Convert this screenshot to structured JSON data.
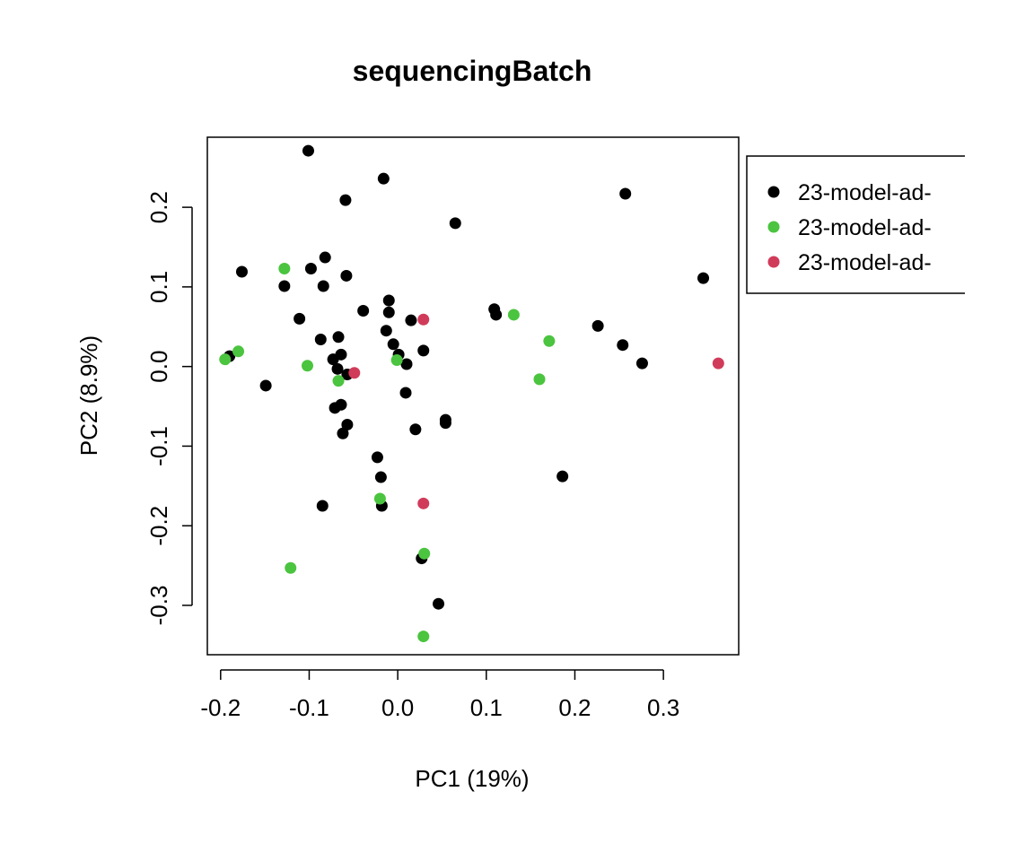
{
  "chart_data": {
    "type": "scatter",
    "title": "sequencingBatch",
    "xlabel": "PC1 (19%)",
    "ylabel": "PC2 (8.9%)",
    "xlim": [
      -0.215,
      0.385
    ],
    "ylim": [
      -0.362,
      0.288
    ],
    "x_ticks": [
      -0.2,
      -0.1,
      0.0,
      0.1,
      0.2,
      0.3
    ],
    "x_tick_labels": [
      "-0.2",
      "-0.1",
      "0.0",
      "0.1",
      "0.2",
      "0.3"
    ],
    "y_ticks": [
      -0.3,
      -0.2,
      -0.1,
      0.0,
      0.1,
      0.2
    ],
    "y_tick_labels": [
      "-0.3",
      "-0.2",
      "-0.1",
      "0.0",
      "0.1",
      "0.2"
    ],
    "grid": false,
    "legend_position": "right",
    "series": [
      {
        "name": "23-model-ad-",
        "color": "#000000",
        "points": [
          [
            -0.101,
            0.271
          ],
          [
            -0.016,
            0.236
          ],
          [
            -0.059,
            0.209
          ],
          [
            0.065,
            0.18
          ],
          [
            0.257,
            0.217
          ],
          [
            -0.176,
            0.119
          ],
          [
            -0.098,
            0.123
          ],
          [
            -0.082,
            0.137
          ],
          [
            -0.084,
            0.101
          ],
          [
            -0.128,
            0.101
          ],
          [
            -0.058,
            0.114
          ],
          [
            0.345,
            0.111
          ],
          [
            -0.01,
            0.083
          ],
          [
            -0.039,
            0.07
          ],
          [
            -0.01,
            0.068
          ],
          [
            0.109,
            0.072
          ],
          [
            0.111,
            0.065
          ],
          [
            -0.111,
            0.06
          ],
          [
            0.015,
            0.058
          ],
          [
            0.226,
            0.051
          ],
          [
            -0.013,
            0.045
          ],
          [
            -0.067,
            0.037
          ],
          [
            -0.087,
            0.034
          ],
          [
            -0.005,
            0.028
          ],
          [
            0.254,
            0.027
          ],
          [
            0.029,
            0.02
          ],
          [
            0.001,
            0.015
          ],
          [
            -0.064,
            0.015
          ],
          [
            -0.19,
            0.013
          ],
          [
            -0.073,
            0.009
          ],
          [
            0.01,
            0.003
          ],
          [
            0.276,
            0.004
          ],
          [
            -0.068,
            -0.003
          ],
          [
            -0.057,
            -0.01
          ],
          [
            -0.149,
            -0.024
          ],
          [
            0.009,
            -0.033
          ],
          [
            -0.064,
            -0.048
          ],
          [
            -0.071,
            -0.052
          ],
          [
            0.054,
            -0.067
          ],
          [
            0.054,
            -0.071
          ],
          [
            -0.057,
            -0.073
          ],
          [
            0.02,
            -0.079
          ],
          [
            -0.062,
            -0.084
          ],
          [
            -0.023,
            -0.114
          ],
          [
            0.186,
            -0.138
          ],
          [
            -0.019,
            -0.139
          ],
          [
            -0.085,
            -0.175
          ],
          [
            -0.018,
            -0.175
          ],
          [
            0.027,
            -0.241
          ],
          [
            0.046,
            -0.298
          ]
        ]
      },
      {
        "name": "23-model-ad-",
        "color": "#4BC43F",
        "points": [
          [
            -0.128,
            0.123
          ],
          [
            0.131,
            0.065
          ],
          [
            0.171,
            0.032
          ],
          [
            -0.18,
            0.019
          ],
          [
            -0.195,
            0.009
          ],
          [
            -0.001,
            0.008
          ],
          [
            -0.102,
            0.001
          ],
          [
            -0.067,
            -0.018
          ],
          [
            0.16,
            -0.016
          ],
          [
            -0.02,
            -0.166
          ],
          [
            0.03,
            -0.235
          ],
          [
            -0.121,
            -0.253
          ],
          [
            0.029,
            -0.339
          ]
        ]
      },
      {
        "name": "23-model-ad-",
        "color": "#D13B5A",
        "points": [
          [
            0.029,
            0.059
          ],
          [
            -0.049,
            -0.008
          ],
          [
            0.362,
            0.004
          ],
          [
            0.029,
            -0.172
          ]
        ]
      }
    ]
  }
}
